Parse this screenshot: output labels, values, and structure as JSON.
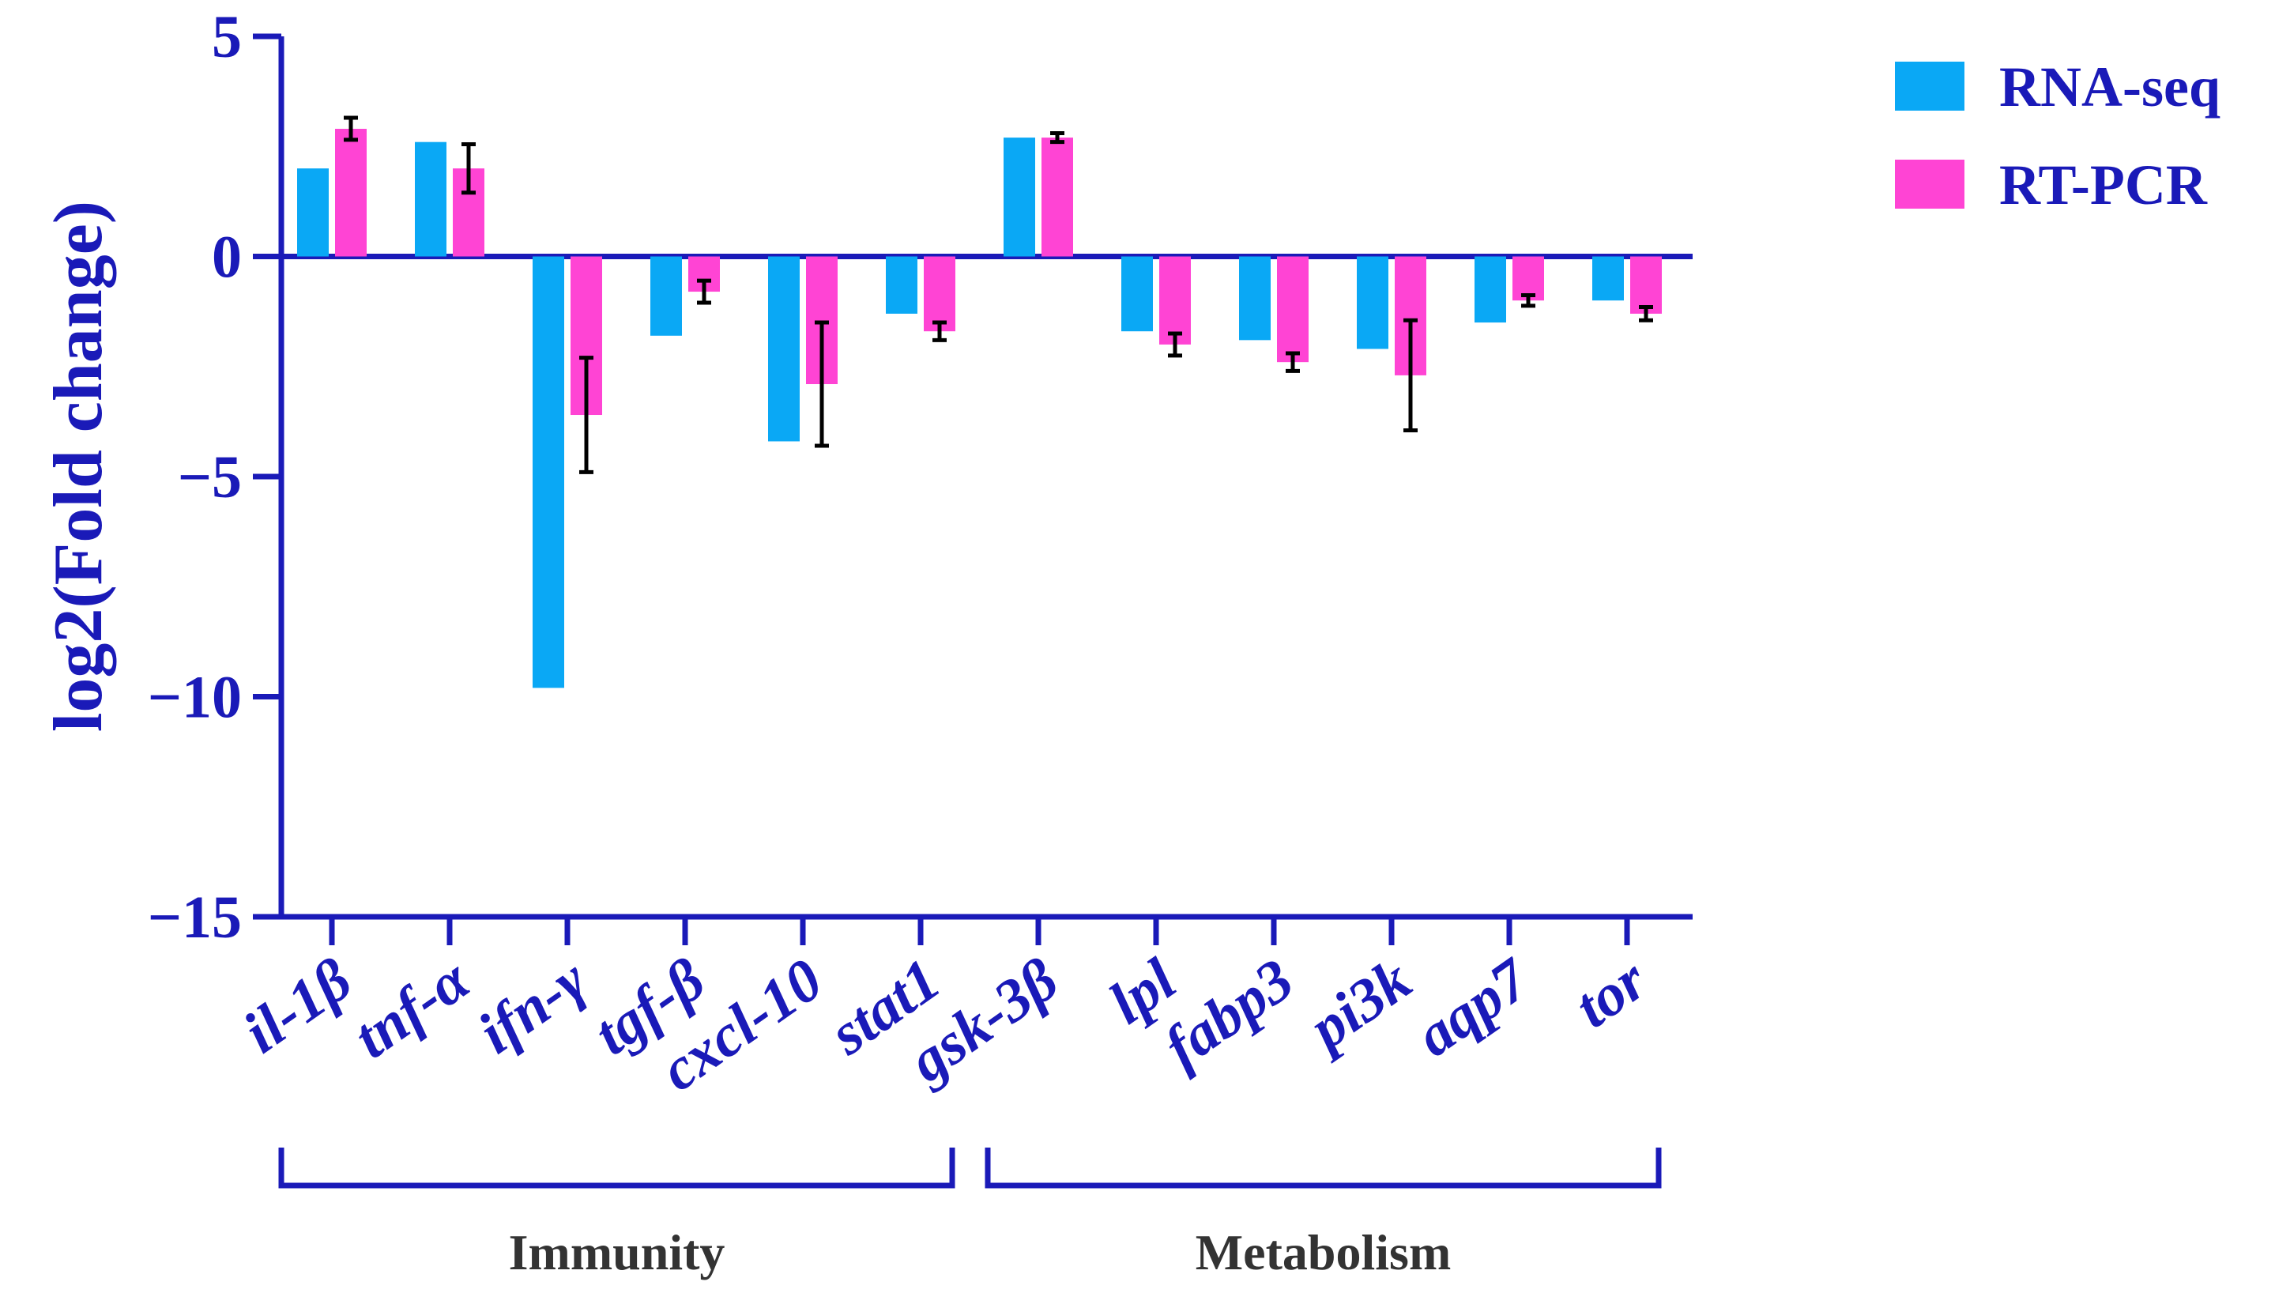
{
  "chart_data": {
    "type": "bar",
    "title": "",
    "xlabel": "",
    "ylabel": "log2(Fold change)",
    "ylim": [
      -15,
      5
    ],
    "yticks": [
      5,
      0,
      -5,
      -10,
      -15
    ],
    "ytick_labels": [
      "5",
      "0",
      "−5",
      "−10",
      "−15"
    ],
    "categories": [
      "il-1β",
      "tnf-α",
      "ifn-γ",
      "tgf-β",
      "cxcl-10",
      "stat1",
      "gsk-3β",
      "lpl",
      "fabp3",
      "pi3k",
      "aqp7",
      "tor"
    ],
    "series": [
      {
        "name": "RNA-seq",
        "color": "#0aa8f5",
        "values": [
          2.0,
          2.6,
          -9.8,
          -1.8,
          -4.2,
          -1.3,
          2.7,
          -1.7,
          -1.9,
          -2.1,
          -1.5,
          -1.0
        ],
        "errors": null
      },
      {
        "name": "RT-PCR",
        "color": "#ff44d4",
        "values": [
          2.9,
          2.0,
          -3.6,
          -0.8,
          -2.9,
          -1.7,
          2.7,
          -2.0,
          -2.4,
          -2.7,
          -1.0,
          -1.3
        ],
        "errors": [
          0.25,
          0.55,
          1.3,
          0.25,
          1.4,
          0.2,
          0.1,
          0.25,
          0.2,
          1.25,
          0.12,
          0.15
        ]
      }
    ],
    "groups": [
      {
        "label": "Immunity",
        "start": 0,
        "end": 5
      },
      {
        "label": "Metabolism",
        "start": 6,
        "end": 11
      }
    ],
    "legend": "top-right",
    "axis_color": "#1a1ab8",
    "error_bar_color": "#000000"
  }
}
